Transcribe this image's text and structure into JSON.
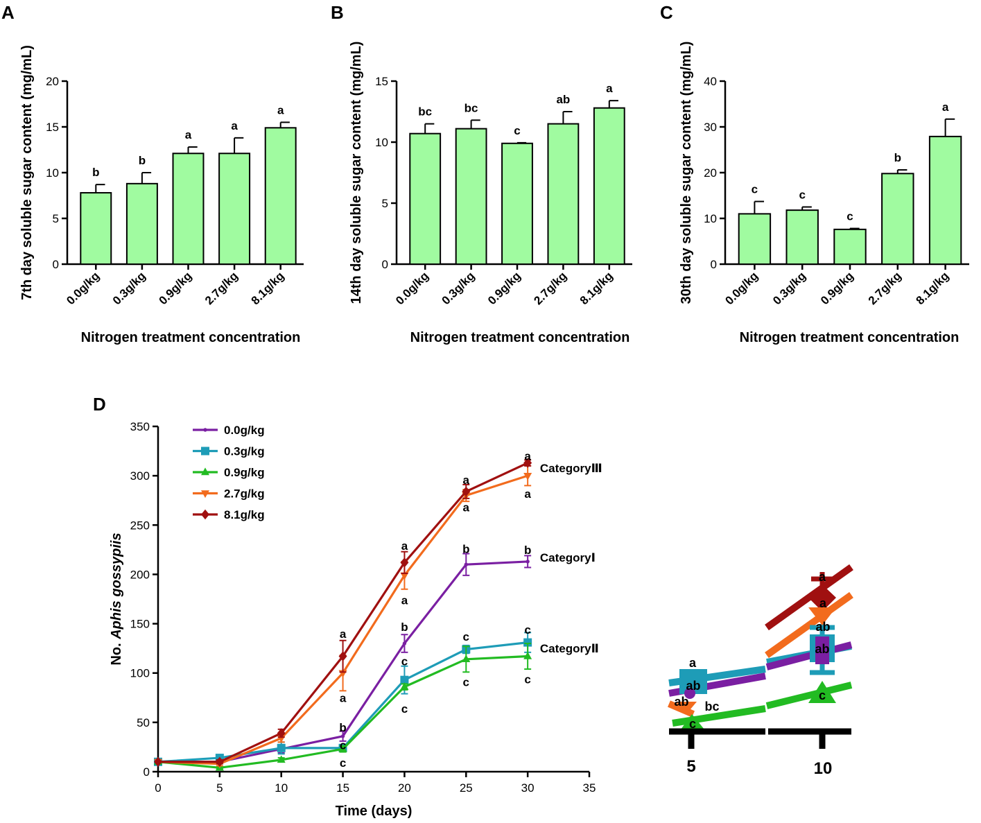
{
  "chart_data": [
    {
      "panel": "A",
      "type": "bar",
      "categories": [
        "0.0g/kg",
        "0.3g/kg",
        "0.9g/kg",
        "2.7g/kg",
        "8.1g/kg"
      ],
      "values": [
        7.8,
        8.8,
        12.1,
        12.1,
        14.9
      ],
      "errors": [
        0.9,
        1.2,
        0.7,
        1.7,
        0.6
      ],
      "letters": [
        "b",
        "b",
        "a",
        "a",
        "a"
      ],
      "ylim": [
        0,
        20
      ],
      "yticks": [
        0,
        5,
        10,
        15,
        20
      ],
      "ylabel": "7th day soluble sugar content (mg/mL)",
      "xlabel": "Nitrogen treatment concentration",
      "bar_color": "#a0fba0"
    },
    {
      "panel": "B",
      "type": "bar",
      "categories": [
        "0.0g/kg",
        "0.3g/kg",
        "0.9g/kg",
        "2.7g/kg",
        "8.1g/kg"
      ],
      "values": [
        10.7,
        11.1,
        9.9,
        11.5,
        12.8
      ],
      "errors": [
        0.8,
        0.7,
        0.05,
        1.0,
        0.6
      ],
      "letters": [
        "bc",
        "bc",
        "c",
        "ab",
        "a"
      ],
      "ylim": [
        0,
        15
      ],
      "yticks": [
        0,
        5,
        10,
        15
      ],
      "ylabel": "14th day soluble sugar content (mg/mL)",
      "xlabel": "Nitrogen treatment concentration",
      "bar_color": "#a0fba0"
    },
    {
      "panel": "C",
      "type": "bar",
      "categories": [
        "0.0g/kg",
        "0.3g/kg",
        "0.9g/kg",
        "2.7g/kg",
        "8.1g/kg"
      ],
      "values": [
        11.0,
        11.8,
        7.6,
        19.8,
        27.9
      ],
      "errors": [
        2.7,
        0.7,
        0.2,
        0.8,
        3.8
      ],
      "letters": [
        "c",
        "c",
        "c",
        "b",
        "a"
      ],
      "ylim": [
        0,
        40
      ],
      "yticks": [
        0,
        10,
        20,
        30,
        40
      ],
      "ylabel": "30th day soluble sugar content (mg/mL)",
      "xlabel": "Nitrogen treatment concentration",
      "bar_color": "#a0fba0"
    },
    {
      "panel": "D",
      "type": "line",
      "x": [
        0,
        5,
        10,
        15,
        20,
        25,
        30
      ],
      "xlim": [
        0,
        35
      ],
      "xticks": [
        0,
        5,
        10,
        15,
        20,
        25,
        30,
        35
      ],
      "ylim": [
        0,
        350
      ],
      "yticks": [
        0,
        50,
        100,
        150,
        200,
        250,
        300,
        350
      ],
      "xlabel": "Time (days)",
      "ylabel_prefix": "No. ",
      "ylabel_italic": "Aphis gossypiis",
      "series": [
        {
          "name": "0.0g/kg",
          "color": "#7a1fa2",
          "marker": "dot",
          "values": [
            10,
            10,
            23,
            36,
            130,
            210,
            213
          ],
          "errors": [
            0,
            0,
            4,
            5,
            9,
            11,
            6
          ]
        },
        {
          "name": "0.3g/kg",
          "color": "#1e9cb7",
          "marker": "square",
          "values": [
            10,
            14,
            24,
            24,
            93,
            124,
            131
          ],
          "errors": [
            0,
            3,
            6,
            3,
            14,
            4,
            10
          ]
        },
        {
          "name": "0.9g/kg",
          "color": "#22bb22",
          "marker": "triangle",
          "values": [
            10,
            4,
            12,
            23,
            86,
            114,
            117
          ],
          "errors": [
            0,
            1,
            2,
            3,
            3,
            13,
            13
          ]
        },
        {
          "name": "2.7g/kg",
          "color": "#f26b1d",
          "marker": "triangle-down",
          "values": [
            10,
            8,
            34,
            100,
            199,
            280,
            300
          ],
          "errors": [
            0,
            2,
            4,
            18,
            14,
            6,
            10
          ]
        },
        {
          "name": "8.1g/kg",
          "color": "#a01010",
          "marker": "diamond",
          "values": [
            10,
            10,
            39,
            117,
            212,
            284,
            313
          ],
          "errors": [
            0,
            2,
            4,
            16,
            11,
            7,
            3
          ]
        }
      ],
      "annotations": [
        {
          "text": "a",
          "x": 15,
          "y": 140
        },
        {
          "text": "a",
          "x": 15,
          "y": 75
        },
        {
          "text": "b",
          "x": 15,
          "y": 45
        },
        {
          "text": "c",
          "x": 15,
          "y": 27
        },
        {
          "text": "c",
          "x": 15,
          "y": 9
        },
        {
          "text": "a",
          "x": 20,
          "y": 229
        },
        {
          "text": "a",
          "x": 20,
          "y": 174
        },
        {
          "text": "b",
          "x": 20,
          "y": 147
        },
        {
          "text": "c",
          "x": 20,
          "y": 112
        },
        {
          "text": "c",
          "x": 20,
          "y": 64
        },
        {
          "text": "a",
          "x": 25,
          "y": 296
        },
        {
          "text": "a",
          "x": 25,
          "y": 268
        },
        {
          "text": "b",
          "x": 25,
          "y": 226
        },
        {
          "text": "c",
          "x": 25,
          "y": 137
        },
        {
          "text": "c",
          "x": 25,
          "y": 91
        },
        {
          "text": "a",
          "x": 30,
          "y": 320
        },
        {
          "text": "a",
          "x": 30,
          "y": 282
        },
        {
          "text": "b",
          "x": 30,
          "y": 225
        },
        {
          "text": "c",
          "x": 30,
          "y": 144
        },
        {
          "text": "c",
          "x": 30,
          "y": 94
        }
      ],
      "category_labels": [
        {
          "text": "CategoryⅢ",
          "x": 31,
          "y": 308
        },
        {
          "text": "CategoryⅠ",
          "x": 31,
          "y": 217
        },
        {
          "text": "CategoryⅡ",
          "x": 31,
          "y": 125
        }
      ],
      "inset": {
        "xtick_labels": [
          "5",
          "10"
        ],
        "letters_day5": [
          "a",
          "ab",
          "ab",
          "bc",
          "c"
        ],
        "letters_day10": [
          "a",
          "a",
          "ab",
          "ab",
          "c"
        ]
      }
    }
  ]
}
